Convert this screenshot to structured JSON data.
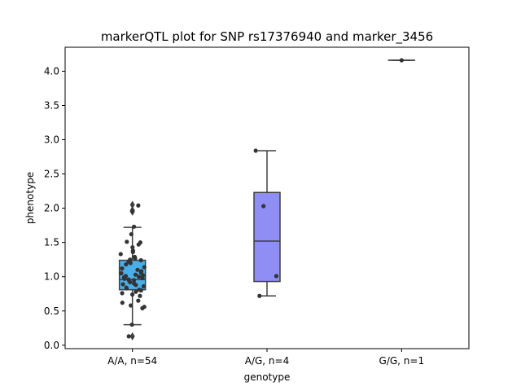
{
  "chart_data": {
    "type": "box",
    "title": "markerQTL plot for SNP rs17376940 and marker_3456",
    "xlabel": "genotype",
    "ylabel": "phenotype",
    "ylim": [
      -0.05,
      4.35
    ],
    "yticks": [
      "0.0",
      "0.5",
      "1.0",
      "1.5",
      "2.0",
      "2.5",
      "3.0",
      "3.5",
      "4.0"
    ],
    "categories": [
      "A/A, n=54",
      "A/G, n=4",
      "G/G, n=1"
    ],
    "grid": false,
    "legend": "none",
    "boxes": [
      {
        "category": "A/A, n=54",
        "color": "#4aaee8",
        "q1": 0.81,
        "median": 0.96,
        "q3": 1.24,
        "whisker_low": 0.3,
        "whisker_high": 1.72,
        "outliers": [
          2.05,
          1.97,
          1.95,
          0.13
        ]
      },
      {
        "category": "A/G, n=4",
        "color": "#8e8ef5",
        "q1": 0.93,
        "median": 1.52,
        "q3": 2.23,
        "whisker_low": 0.72,
        "whisker_high": 2.84,
        "outliers": []
      },
      {
        "category": "G/G, n=1",
        "color": "#f5a5e8",
        "q1": 4.16,
        "median": 4.16,
        "q3": 4.16,
        "whisker_low": 4.16,
        "whisker_high": 4.16,
        "outliers": []
      }
    ],
    "points": {
      "A/A, n=54": [
        2.04,
        1.73,
        1.62,
        1.51,
        1.5,
        1.47,
        1.43,
        1.38,
        1.36,
        1.33,
        1.29,
        1.27,
        1.25,
        1.24,
        1.22,
        1.2,
        1.18,
        1.14,
        1.1,
        1.08,
        1.06,
        1.05,
        1.03,
        1.02,
        1.01,
        1.0,
        0.99,
        0.98,
        0.97,
        0.96,
        0.95,
        0.94,
        0.92,
        0.9,
        0.89,
        0.88,
        0.86,
        0.84,
        0.83,
        0.81,
        0.8,
        0.78,
        0.76,
        0.74,
        0.72,
        0.65,
        0.62,
        0.58,
        0.56,
        0.54,
        0.3,
        0.13,
        1.96,
        1.12
      ],
      "A/G, n=4": [
        2.84,
        2.03,
        1.01,
        0.72
      ],
      "G/G, n=1": [
        4.16
      ]
    }
  }
}
